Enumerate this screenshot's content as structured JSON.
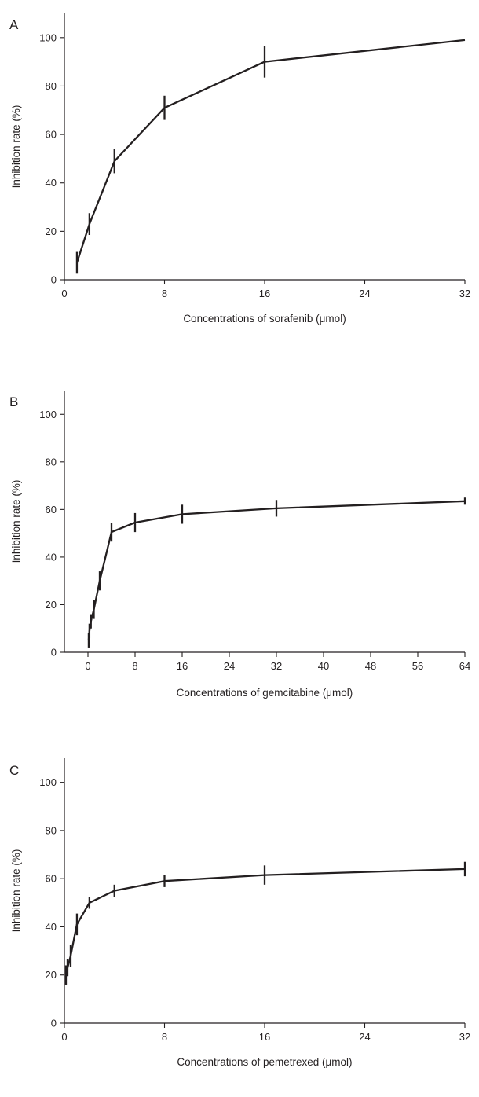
{
  "chart_data": [
    {
      "panel": "A",
      "type": "line",
      "xlabel": "Concentrations of sorafenib (μmol)",
      "ylabel": "Inhibition rate (%)",
      "xlim": [
        0,
        32
      ],
      "ylim": [
        0,
        110
      ],
      "xticks": [
        0,
        8,
        16,
        24,
        32
      ],
      "yticks": [
        0,
        20,
        40,
        60,
        80,
        100
      ],
      "grid": false,
      "series": [
        {
          "x": [
            1,
            2,
            4,
            8,
            16,
            32
          ],
          "y": [
            7,
            23,
            49,
            71,
            90,
            99
          ],
          "error": [
            4.5,
            4.5,
            5,
            5,
            6.5,
            0
          ]
        }
      ]
    },
    {
      "panel": "B",
      "type": "line",
      "xlabel": "Concentrations of gemcitabine (μmol)",
      "ylabel": "Inhibition rate (%)",
      "xlim": [
        -4,
        64
      ],
      "ylim": [
        0,
        110
      ],
      "xticks": [
        0,
        8,
        16,
        24,
        32,
        40,
        48,
        56,
        64
      ],
      "yticks": [
        0,
        20,
        40,
        60,
        80,
        100
      ],
      "grid": false,
      "series": [
        {
          "x": [
            0.125,
            0.25,
            0.5,
            1,
            2,
            4,
            8,
            16,
            32,
            64
          ],
          "y": [
            5,
            9,
            13,
            18,
            30,
            50.5,
            54.5,
            58,
            60.5,
            63.5
          ],
          "error": [
            3,
            3,
            3,
            4,
            4,
            4,
            4,
            4,
            3.5,
            1.5
          ]
        }
      ]
    },
    {
      "panel": "C",
      "type": "line",
      "xlabel": "Concentrations of pemetrexed (μmol)",
      "ylabel": "Inhibition rate (%)",
      "xlim": [
        0,
        32
      ],
      "ylim": [
        0,
        110
      ],
      "xticks": [
        0,
        8,
        16,
        24,
        32
      ],
      "yticks": [
        0,
        20,
        40,
        60,
        80,
        100
      ],
      "grid": false,
      "series": [
        {
          "x": [
            0.125,
            0.25,
            0.5,
            1,
            2,
            4,
            8,
            16,
            32
          ],
          "y": [
            20,
            23,
            28,
            41,
            50,
            55,
            59,
            61.5,
            64
          ],
          "error": [
            4,
            3.5,
            4.5,
            4.5,
            2.5,
            2.5,
            2.5,
            4,
            3
          ]
        }
      ]
    }
  ]
}
